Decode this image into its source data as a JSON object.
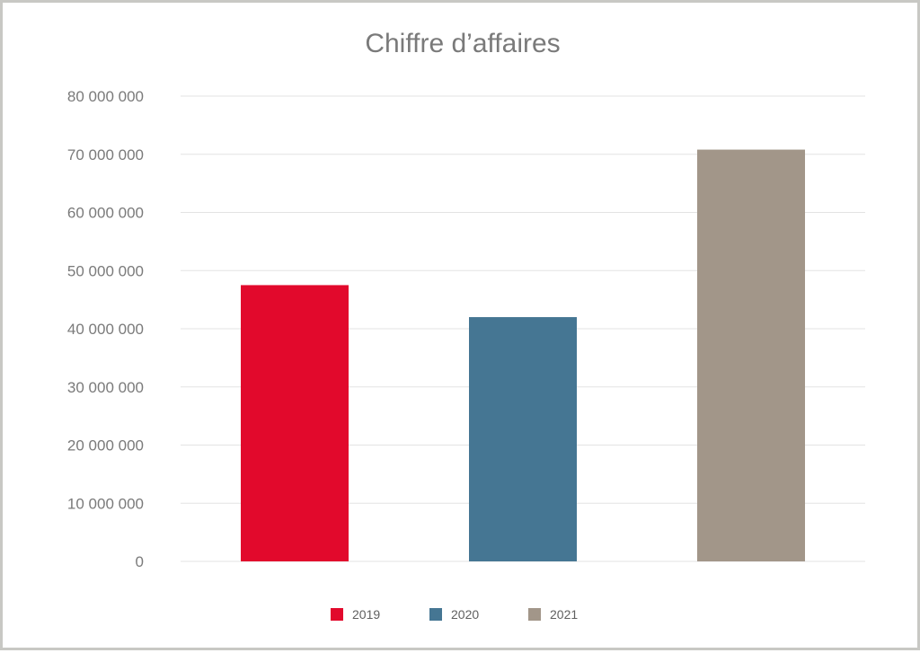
{
  "chart_data": {
    "type": "bar",
    "title": "Chiffre d’affaires",
    "xlabel": "",
    "ylabel": "",
    "ylim": [
      0,
      80000000
    ],
    "y_ticks": [
      0,
      10000000,
      20000000,
      30000000,
      40000000,
      50000000,
      60000000,
      70000000,
      80000000
    ],
    "y_tick_labels": [
      "0",
      "10 000 000",
      "20 000 000",
      "30 000 000",
      "40 000 000",
      "50 000 000",
      "60 000 000",
      "70 000 000",
      "80 000 000"
    ],
    "categories": [
      "2019",
      "2020",
      "2021"
    ],
    "values": [
      47500000,
      42000000,
      70800000
    ],
    "colors": [
      "#e2092c",
      "#457693",
      "#a29689"
    ],
    "grid": true,
    "legend": {
      "position": "bottom",
      "entries": [
        "2019",
        "2020",
        "2021"
      ]
    }
  }
}
